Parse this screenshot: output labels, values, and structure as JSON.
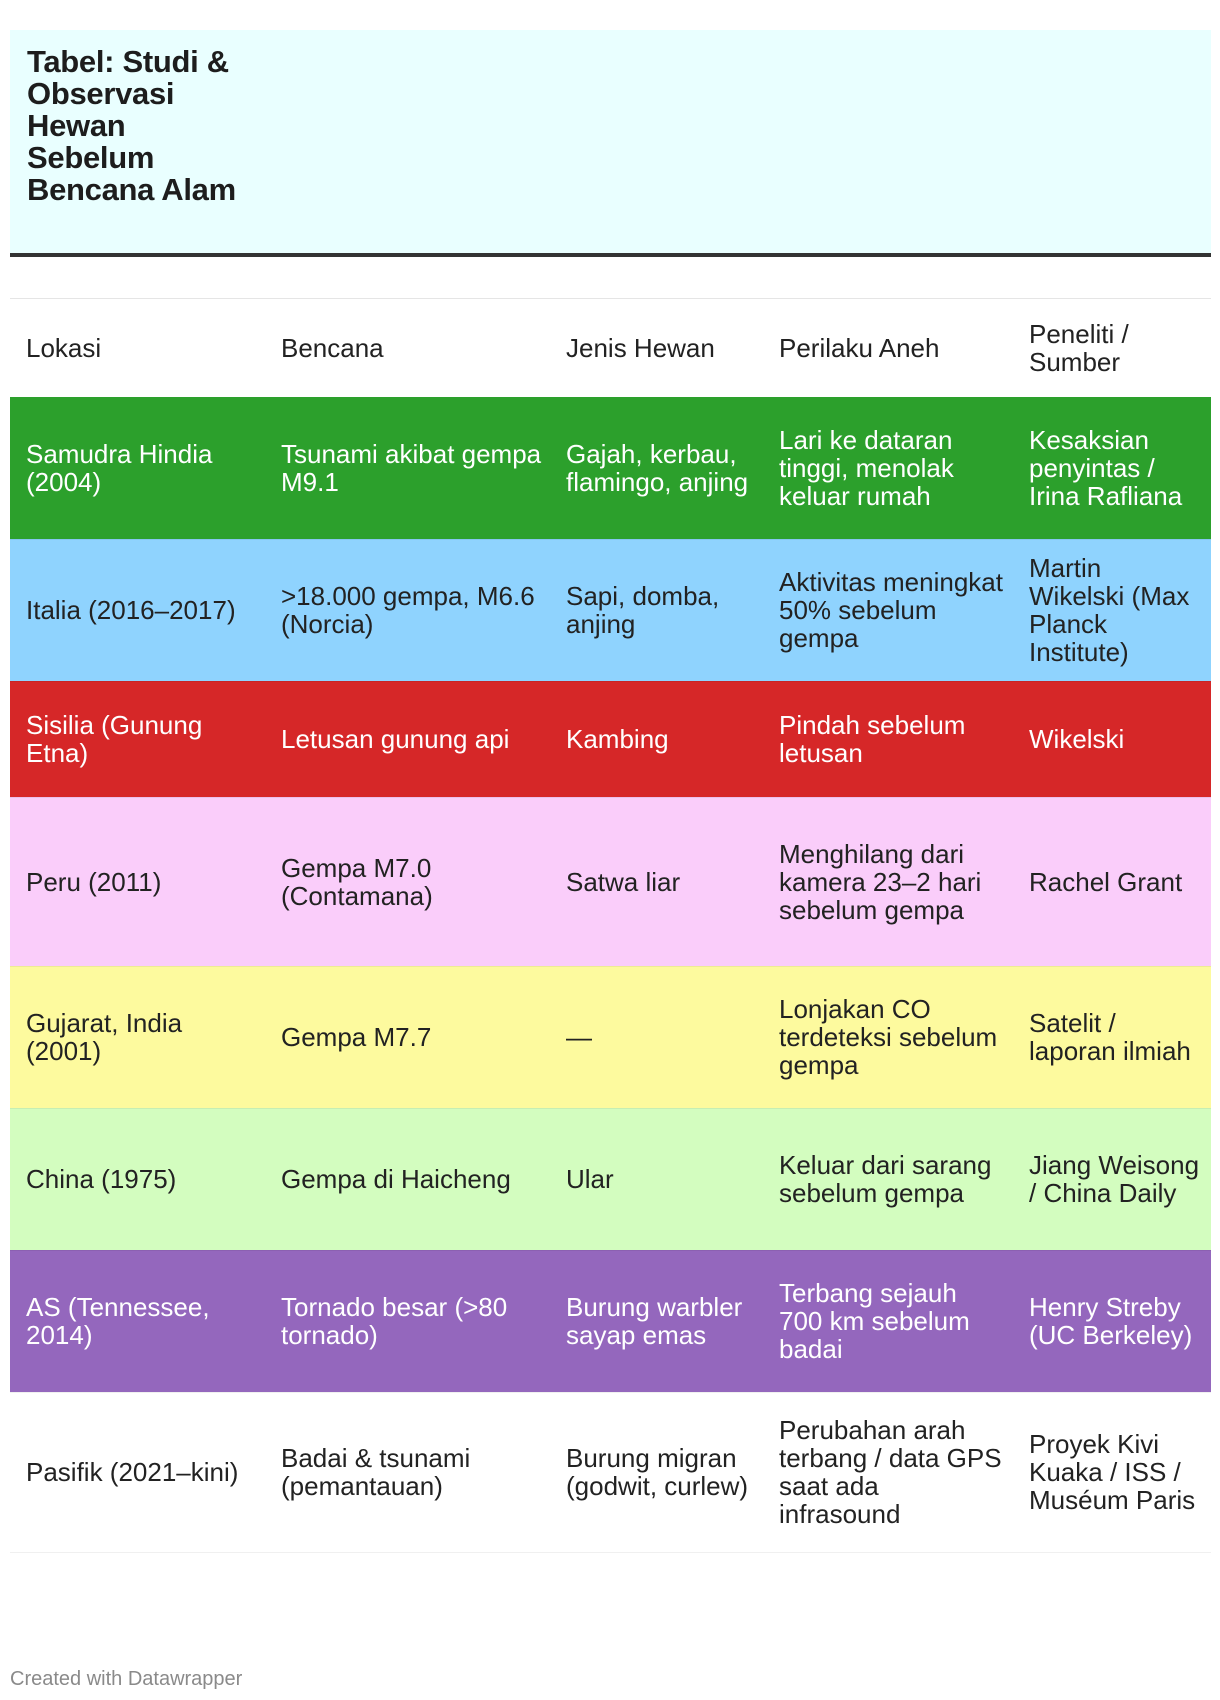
{
  "title": "Tabel: Studi & Observasi Hewan Sebelum Bencana Alam",
  "footer": "Created with Datawrapper",
  "chart_data": {
    "type": "table",
    "columns": [
      "Lokasi",
      "Bencana",
      "Jenis Hewan",
      "Perilaku Aneh",
      "Peneliti / Sumber"
    ],
    "rows": [
      {
        "bg": "#2ca02c",
        "fg": "#ffffff",
        "cells": [
          "Samudra Hindia (2004)",
          "Tsunami akibat gempa M9.1",
          "Gajah, kerbau, flamingo, anjing",
          "Lari ke dataran tinggi, menolak keluar rumah",
          "Kesaksian penyintas / Irina Rafliana"
        ]
      },
      {
        "bg": "#8fd3fe",
        "fg": "#222222",
        "cells": [
          "Italia (2016–2017)",
          ">18.000 gempa, M6.6 (Norcia)",
          "Sapi, domba, anjing",
          "Aktivitas meningkat 50% sebelum gempa",
          "Martin Wikelski (Max Planck Institute)"
        ]
      },
      {
        "bg": "#d62728",
        "fg": "#ffffff",
        "cells": [
          "Sisilia (Gunung Etna)",
          "Letusan gunung api",
          "Kambing",
          "Pindah sebelum letusan",
          "Wikelski"
        ]
      },
      {
        "bg": "#facdfa",
        "fg": "#222222",
        "cells": [
          "Peru (2011)",
          "Gempa M7.0 (Contamana)",
          "Satwa liar",
          "Menghilang dari kamera 23–2 hari sebelum gempa",
          "Rachel Grant"
        ]
      },
      {
        "bg": "#fdfa9e",
        "fg": "#222222",
        "cells": [
          "Gujarat, India (2001)",
          "Gempa M7.7",
          "—",
          "Lonjakan CO terdeteksi sebelum gempa",
          "Satelit / laporan ilmiah"
        ]
      },
      {
        "bg": "#d3fdbf",
        "fg": "#222222",
        "cells": [
          "China (1975)",
          "Gempa di Haicheng",
          "Ular",
          "Keluar dari sarang sebelum gempa",
          "Jiang Weisong / China Daily"
        ]
      },
      {
        "bg": "#9467bd",
        "fg": "#ffffff",
        "cells": [
          "AS (Tennessee, 2014)",
          "Tornado besar (>80 tornado)",
          "Burung warbler sayap emas",
          "Terbang sejauh 700 km sebelum badai",
          "Henry Streby (UC Berkeley)"
        ]
      },
      {
        "bg": "#ffffff",
        "fg": "#222222",
        "cells": [
          "Pasifik (2021–kini)",
          "Badai & tsunami (pemantauan)",
          "Burung migran (godwit, curlew)",
          "Perubahan arah terbang / data GPS saat ada infrasound",
          "Proyek Kivi Kuaka / ISS / Muséum Paris"
        ]
      }
    ]
  }
}
